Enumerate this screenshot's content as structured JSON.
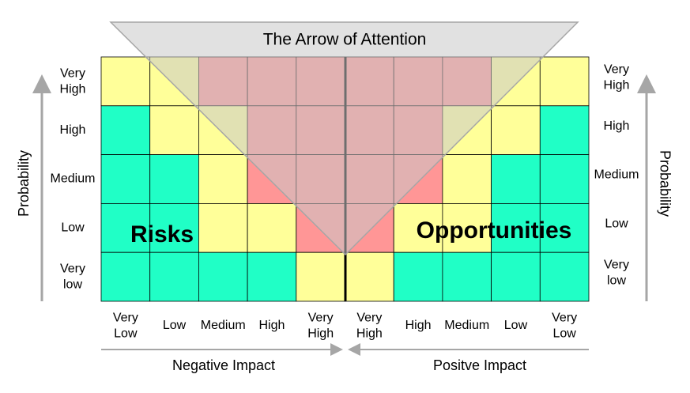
{
  "title": "The Arrow of Attention",
  "risks_label": "Risks",
  "opportunities_label": "Opportunities",
  "probability_left": "Probability",
  "probability_right": "Probability",
  "probability_levels_left": [
    "Very High",
    "High",
    "Medium",
    "Low",
    "Very low"
  ],
  "probability_levels_right": [
    "Very High",
    "High",
    "Medium",
    "Low",
    "Very low"
  ],
  "impact_levels": [
    "Very Low",
    "Low",
    "Medium",
    "High",
    "Very High",
    "Very High",
    "High",
    "Medium",
    "Low",
    "Very Low"
  ],
  "negative_impact": "Negative Impact",
  "positive_impact": "Positve Impact"
}
